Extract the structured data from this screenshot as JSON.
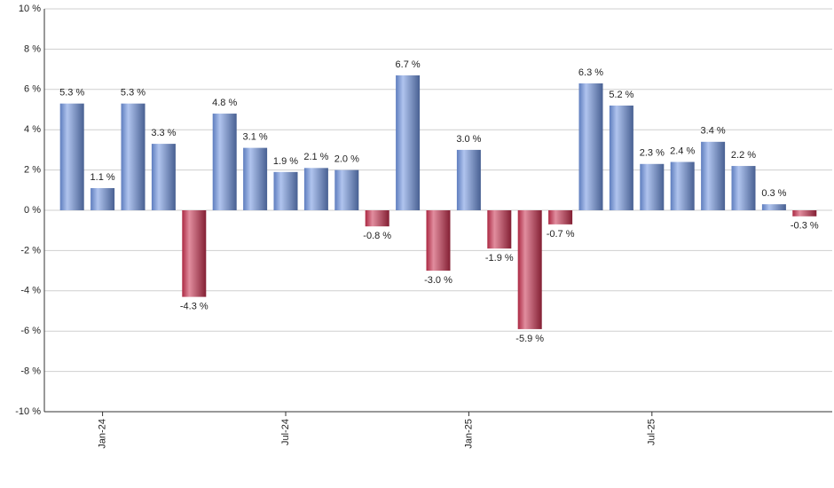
{
  "chart_data": {
    "type": "bar",
    "categories": [
      null,
      "Jan-24",
      null,
      null,
      null,
      null,
      null,
      "Jul-24",
      null,
      null,
      null,
      null,
      null,
      "Jan-25",
      null,
      null,
      null,
      null,
      null,
      "Jul-25",
      null,
      null,
      null,
      null,
      null
    ],
    "values": [
      5.3,
      1.1,
      5.3,
      3.3,
      -4.3,
      4.8,
      3.1,
      1.9,
      2.1,
      2.0,
      -0.8,
      6.7,
      -3.0,
      3.0,
      -1.9,
      -5.9,
      -0.7,
      6.3,
      5.2,
      2.3,
      2.4,
      3.4,
      2.2,
      0.3,
      -0.3
    ],
    "value_labels": [
      "5.3 %",
      "1.1 %",
      "5.3 %",
      "3.3 %",
      "-4.3 %",
      "4.8 %",
      "3.1 %",
      "1.9 %",
      "2.1 %",
      "2.0 %",
      "-0.8 %",
      "6.7 %",
      "-3.0 %",
      "3.0 %",
      "-1.9 %",
      "-5.9 %",
      "-0.7 %",
      "6.3 %",
      "5.2 %",
      "2.3 %",
      "2.4 %",
      "3.4 %",
      "2.2 %",
      "0.3 %",
      "-0.3 %"
    ],
    "positive_color": "#6f93e0",
    "negative_color": "#c9304f",
    "ylim": [
      -10,
      10
    ],
    "yticks": [
      {
        "value": -10,
        "label": "-10 %"
      },
      {
        "value": -8,
        "label": "-8 %"
      },
      {
        "value": -6,
        "label": "-6 %"
      },
      {
        "value": -4,
        "label": "-4 %"
      },
      {
        "value": -2,
        "label": "-2 %"
      },
      {
        "value": 0,
        "label": "0 %"
      },
      {
        "value": 2,
        "label": "2 %"
      },
      {
        "value": 4,
        "label": "4 %"
      },
      {
        "value": 6,
        "label": "6 %"
      },
      {
        "value": 8,
        "label": "8 %"
      },
      {
        "value": 10,
        "label": "10 %"
      }
    ],
    "grid": true
  }
}
